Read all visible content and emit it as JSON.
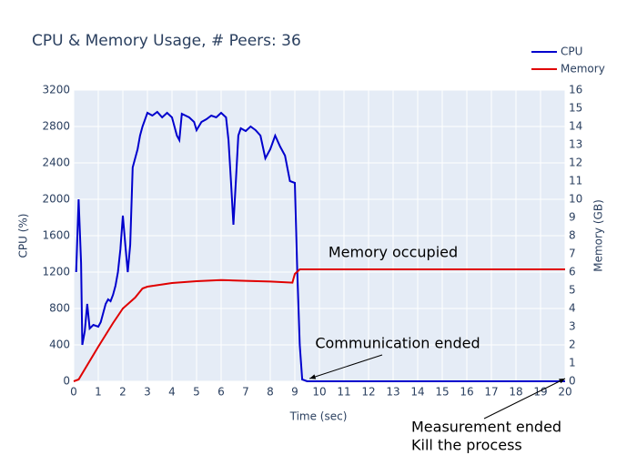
{
  "chart_data": {
    "type": "line",
    "title": "CPU & Memory Usage, # Peers: 36",
    "x_label": "Time (sec)",
    "y_label": "CPU (%)",
    "y2_label": "Memory (GB)",
    "xlim": [
      0,
      20
    ],
    "xticks": [
      0,
      1,
      2,
      3,
      4,
      5,
      6,
      7,
      8,
      9,
      10,
      11,
      12,
      13,
      14,
      15,
      16,
      17,
      18,
      19,
      20
    ],
    "ylim": [
      0,
      3200
    ],
    "yticks": [
      0,
      400,
      800,
      1200,
      1600,
      2000,
      2400,
      2800,
      3200
    ],
    "y2lim": [
      0,
      16
    ],
    "y2ticks": [
      0,
      1,
      2,
      3,
      4,
      5,
      6,
      7,
      8,
      9,
      10,
      11,
      12,
      13,
      14,
      15,
      16
    ],
    "grid": true,
    "legend": "top-right",
    "series": [
      {
        "name": "CPU",
        "color": "#0000cd",
        "x": [
          0.1,
          0.2,
          0.3,
          0.35,
          0.45,
          0.55,
          0.65,
          0.8,
          1.0,
          1.1,
          1.3,
          1.4,
          1.5,
          1.6,
          1.7,
          1.8,
          1.9,
          2.0,
          2.1,
          2.2,
          2.3,
          2.4,
          2.6,
          2.7,
          2.8,
          3.0,
          3.2,
          3.4,
          3.6,
          3.8,
          4.0,
          4.2,
          4.3,
          4.4,
          4.7,
          4.9,
          5.0,
          5.2,
          5.4,
          5.6,
          5.8,
          6.0,
          6.2,
          6.3,
          6.4,
          6.5,
          6.6,
          6.7,
          6.8,
          7.0,
          7.2,
          7.4,
          7.6,
          7.8,
          8.0,
          8.2,
          8.4,
          8.6,
          8.8,
          9.0,
          9.1,
          9.2,
          9.3,
          9.5,
          20
        ],
        "values": [
          1200,
          2000,
          1300,
          400,
          550,
          850,
          580,
          620,
          600,
          650,
          850,
          900,
          880,
          950,
          1050,
          1200,
          1450,
          1820,
          1500,
          1200,
          1500,
          2350,
          2550,
          2700,
          2800,
          2950,
          2920,
          2960,
          2900,
          2950,
          2900,
          2700,
          2650,
          2940,
          2900,
          2850,
          2760,
          2850,
          2880,
          2920,
          2900,
          2950,
          2900,
          2650,
          2200,
          1720,
          2200,
          2700,
          2780,
          2750,
          2800,
          2760,
          2700,
          2450,
          2550,
          2700,
          2580,
          2480,
          2200,
          2180,
          1200,
          400,
          20,
          0,
          0
        ]
      },
      {
        "name": "Memory",
        "color": "#e00000",
        "axis": "y2",
        "x": [
          0,
          0.2,
          1,
          1.6,
          2,
          2.5,
          2.8,
          3,
          3.5,
          4,
          5,
          6,
          7,
          8,
          8.9,
          9,
          9.2,
          20
        ],
        "values": [
          0,
          0.1,
          1.9,
          3.2,
          4,
          4.6,
          5.1,
          5.2,
          5.3,
          5.4,
          5.5,
          5.56,
          5.52,
          5.48,
          5.42,
          5.9,
          6.15,
          6.15
        ]
      }
    ],
    "annotations": [
      {
        "text": "Memory occupied",
        "x": 13,
        "y": 7.05,
        "axis": "y2"
      },
      {
        "text": "Communication ended",
        "x": 9.6,
        "y": 0,
        "axis": "y2"
      },
      {
        "text": "Measurement ended",
        "x": 20,
        "y": 0,
        "axis": "y2"
      },
      {
        "text": "Kill the process"
      }
    ]
  }
}
